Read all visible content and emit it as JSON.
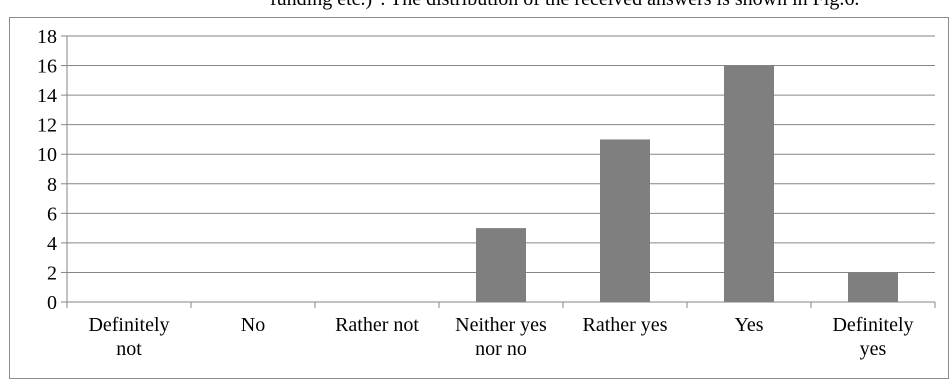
{
  "caption_fragment": "funding etc.)\". The distribution of the received answers is shown in Fig.6.",
  "chart_data": {
    "type": "bar",
    "title": "",
    "xlabel": "",
    "ylabel": "",
    "categories": [
      [
        "Definitely",
        "not"
      ],
      [
        "No"
      ],
      [
        "Rather not"
      ],
      [
        "Neither yes",
        "nor no"
      ],
      [
        "Rather yes"
      ],
      [
        "Yes"
      ],
      [
        "Definitely",
        "yes"
      ]
    ],
    "values": [
      0,
      0,
      0,
      5,
      11,
      16,
      2
    ],
    "ylim": [
      0,
      18
    ],
    "yticks": [
      "0",
      "2",
      "4",
      "6",
      "8",
      "10",
      "12",
      "14",
      "16",
      "18"
    ],
    "grid": true,
    "bar_color": "#7f7f7f",
    "grid_color": "#868686"
  }
}
